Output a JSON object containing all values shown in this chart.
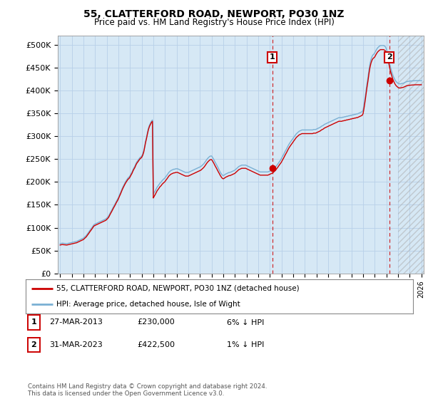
{
  "title": "55, CLATTERFORD ROAD, NEWPORT, PO30 1NZ",
  "subtitle": "Price paid vs. HM Land Registry's House Price Index (HPI)",
  "ylabel_ticks": [
    "£0",
    "£50K",
    "£100K",
    "£150K",
    "£200K",
    "£250K",
    "£300K",
    "£350K",
    "£400K",
    "£450K",
    "£500K"
  ],
  "ytick_vals": [
    0,
    50000,
    100000,
    150000,
    200000,
    250000,
    300000,
    350000,
    400000,
    450000,
    500000
  ],
  "ylim": [
    0,
    520000
  ],
  "xlim_start": 1994.8,
  "xlim_end": 2026.2,
  "hpi_color": "#7ab0d4",
  "price_color": "#cc0000",
  "background_color": "#d6e8f5",
  "grid_color": "#b8d0e8",
  "sale1_x": 2013.2,
  "sale1_y": 230000,
  "sale2_x": 2023.25,
  "sale2_y": 422500,
  "legend_line1": "55, CLATTERFORD ROAD, NEWPORT, PO30 1NZ (detached house)",
  "legend_line2": "HPI: Average price, detached house, Isle of Wight",
  "table_row1": [
    "1",
    "27-MAR-2013",
    "£230,000",
    "6% ↓ HPI"
  ],
  "table_row2": [
    "2",
    "31-MAR-2023",
    "£422,500",
    "1% ↓ HPI"
  ],
  "footer": "Contains HM Land Registry data © Crown copyright and database right 2024.\nThis data is licensed under the Open Government Licence v3.0.",
  "x_months": [
    1995.0,
    1995.08,
    1995.17,
    1995.25,
    1995.33,
    1995.42,
    1995.5,
    1995.58,
    1995.67,
    1995.75,
    1995.83,
    1995.92,
    1996.0,
    1996.08,
    1996.17,
    1996.25,
    1996.33,
    1996.42,
    1996.5,
    1996.58,
    1996.67,
    1996.75,
    1996.83,
    1996.92,
    1997.0,
    1997.08,
    1997.17,
    1997.25,
    1997.33,
    1997.42,
    1997.5,
    1997.58,
    1997.67,
    1997.75,
    1997.83,
    1997.92,
    1998.0,
    1998.08,
    1998.17,
    1998.25,
    1998.33,
    1998.42,
    1998.5,
    1998.58,
    1998.67,
    1998.75,
    1998.83,
    1998.92,
    1999.0,
    1999.08,
    1999.17,
    1999.25,
    1999.33,
    1999.42,
    1999.5,
    1999.58,
    1999.67,
    1999.75,
    1999.83,
    1999.92,
    2000.0,
    2000.08,
    2000.17,
    2000.25,
    2000.33,
    2000.42,
    2000.5,
    2000.58,
    2000.67,
    2000.75,
    2000.83,
    2000.92,
    2001.0,
    2001.08,
    2001.17,
    2001.25,
    2001.33,
    2001.42,
    2001.5,
    2001.58,
    2001.67,
    2001.75,
    2001.83,
    2001.92,
    2002.0,
    2002.08,
    2002.17,
    2002.25,
    2002.33,
    2002.42,
    2002.5,
    2002.58,
    2002.67,
    2002.75,
    2002.83,
    2002.92,
    2003.0,
    2003.08,
    2003.17,
    2003.25,
    2003.33,
    2003.42,
    2003.5,
    2003.58,
    2003.67,
    2003.75,
    2003.83,
    2003.92,
    2004.0,
    2004.08,
    2004.17,
    2004.25,
    2004.33,
    2004.42,
    2004.5,
    2004.58,
    2004.67,
    2004.75,
    2004.83,
    2004.92,
    2005.0,
    2005.08,
    2005.17,
    2005.25,
    2005.33,
    2005.42,
    2005.5,
    2005.58,
    2005.67,
    2005.75,
    2005.83,
    2005.92,
    2006.0,
    2006.08,
    2006.17,
    2006.25,
    2006.33,
    2006.42,
    2006.5,
    2006.58,
    2006.67,
    2006.75,
    2006.83,
    2006.92,
    2007.0,
    2007.08,
    2007.17,
    2007.25,
    2007.33,
    2007.42,
    2007.5,
    2007.58,
    2007.67,
    2007.75,
    2007.83,
    2007.92,
    2008.0,
    2008.08,
    2008.17,
    2008.25,
    2008.33,
    2008.42,
    2008.5,
    2008.58,
    2008.67,
    2008.75,
    2008.83,
    2008.92,
    2009.0,
    2009.08,
    2009.17,
    2009.25,
    2009.33,
    2009.42,
    2009.5,
    2009.58,
    2009.67,
    2009.75,
    2009.83,
    2009.92,
    2010.0,
    2010.08,
    2010.17,
    2010.25,
    2010.33,
    2010.42,
    2010.5,
    2010.58,
    2010.67,
    2010.75,
    2010.83,
    2010.92,
    2011.0,
    2011.08,
    2011.17,
    2011.25,
    2011.33,
    2011.42,
    2011.5,
    2011.58,
    2011.67,
    2011.75,
    2011.83,
    2011.92,
    2012.0,
    2012.08,
    2012.17,
    2012.25,
    2012.33,
    2012.42,
    2012.5,
    2012.58,
    2012.67,
    2012.75,
    2012.83,
    2012.92,
    2013.0,
    2013.08,
    2013.17,
    2013.25,
    2013.33,
    2013.42,
    2013.5,
    2013.58,
    2013.67,
    2013.75,
    2013.83,
    2013.92,
    2014.0,
    2014.08,
    2014.17,
    2014.25,
    2014.33,
    2014.42,
    2014.5,
    2014.58,
    2014.67,
    2014.75,
    2014.83,
    2014.92,
    2015.0,
    2015.08,
    2015.17,
    2015.25,
    2015.33,
    2015.42,
    2015.5,
    2015.58,
    2015.67,
    2015.75,
    2015.83,
    2015.92,
    2016.0,
    2016.08,
    2016.17,
    2016.25,
    2016.33,
    2016.42,
    2016.5,
    2016.58,
    2016.67,
    2016.75,
    2016.83,
    2016.92,
    2017.0,
    2017.08,
    2017.17,
    2017.25,
    2017.33,
    2017.42,
    2017.5,
    2017.58,
    2017.67,
    2017.75,
    2017.83,
    2017.92,
    2018.0,
    2018.08,
    2018.17,
    2018.25,
    2018.33,
    2018.42,
    2018.5,
    2018.58,
    2018.67,
    2018.75,
    2018.83,
    2018.92,
    2019.0,
    2019.08,
    2019.17,
    2019.25,
    2019.33,
    2019.42,
    2019.5,
    2019.58,
    2019.67,
    2019.75,
    2019.83,
    2019.92,
    2020.0,
    2020.08,
    2020.17,
    2020.25,
    2020.33,
    2020.42,
    2020.5,
    2020.58,
    2020.67,
    2020.75,
    2020.83,
    2020.92,
    2021.0,
    2021.08,
    2021.17,
    2021.25,
    2021.33,
    2021.42,
    2021.5,
    2021.58,
    2021.67,
    2021.75,
    2021.83,
    2021.92,
    2022.0,
    2022.08,
    2022.17,
    2022.25,
    2022.33,
    2022.42,
    2022.5,
    2022.58,
    2022.67,
    2022.75,
    2022.83,
    2022.92,
    2023.0,
    2023.08,
    2023.17,
    2023.25,
    2023.33,
    2023.42,
    2023.5,
    2023.58,
    2023.67,
    2023.75,
    2023.83,
    2023.92,
    2024.0,
    2024.08,
    2024.17,
    2024.25,
    2024.33,
    2024.42,
    2024.5,
    2024.58,
    2024.67,
    2024.75,
    2025.0,
    2025.5,
    2026.0
  ],
  "hpi_vals": [
    65000,
    65500,
    66000,
    66000,
    65500,
    65500,
    65000,
    65000,
    65500,
    66000,
    66500,
    67000,
    67500,
    68000,
    68500,
    69000,
    69500,
    70000,
    71000,
    72000,
    73000,
    74000,
    75000,
    76000,
    77000,
    79000,
    81000,
    83000,
    86000,
    89000,
    92000,
    95000,
    98000,
    101000,
    104000,
    107000,
    108000,
    109000,
    110000,
    111000,
    112000,
    113000,
    114000,
    115000,
    116000,
    117000,
    118000,
    119000,
    121000,
    123000,
    126000,
    130000,
    134000,
    138000,
    142000,
    146000,
    150000,
    154000,
    158000,
    162000,
    166000,
    171000,
    176000,
    181000,
    186000,
    191000,
    195000,
    199000,
    203000,
    206000,
    209000,
    211000,
    214000,
    218000,
    222000,
    227000,
    231000,
    235000,
    240000,
    244000,
    247000,
    250000,
    253000,
    255000,
    257000,
    261000,
    268000,
    278000,
    289000,
    299000,
    309000,
    318000,
    325000,
    329000,
    333000,
    336000,
    173000,
    177000,
    181000,
    185000,
    189000,
    192000,
    195000,
    198000,
    200000,
    203000,
    205000,
    207000,
    209000,
    212000,
    215000,
    218000,
    221000,
    223000,
    225000,
    226000,
    227000,
    228000,
    228000,
    229000,
    229000,
    229000,
    228000,
    227000,
    226000,
    225000,
    224000,
    223000,
    222000,
    221000,
    221000,
    221000,
    221000,
    222000,
    223000,
    224000,
    225000,
    226000,
    227000,
    228000,
    229000,
    230000,
    231000,
    232000,
    233000,
    234000,
    236000,
    238000,
    240000,
    243000,
    246000,
    249000,
    252000,
    254000,
    256000,
    257000,
    257000,
    254000,
    250000,
    246000,
    242000,
    238000,
    234000,
    230000,
    225000,
    221000,
    218000,
    215000,
    214000,
    215000,
    217000,
    218000,
    219000,
    220000,
    221000,
    221000,
    222000,
    223000,
    224000,
    225000,
    226000,
    228000,
    230000,
    232000,
    234000,
    235000,
    236000,
    237000,
    237000,
    237000,
    237000,
    237000,
    236000,
    235000,
    234000,
    233000,
    232000,
    231000,
    230000,
    229000,
    228000,
    227000,
    226000,
    225000,
    224000,
    223000,
    222000,
    222000,
    222000,
    222000,
    222000,
    222000,
    222000,
    222000,
    222000,
    223000,
    224000,
    225000,
    226000,
    227000,
    229000,
    231000,
    233000,
    236000,
    239000,
    242000,
    245000,
    248000,
    252000,
    256000,
    260000,
    264000,
    268000,
    272000,
    276000,
    280000,
    284000,
    287000,
    290000,
    293000,
    296000,
    299000,
    302000,
    305000,
    307000,
    309000,
    311000,
    312000,
    313000,
    314000,
    314000,
    314000,
    314000,
    314000,
    314000,
    314000,
    314000,
    314000,
    314000,
    314000,
    314000,
    315000,
    315000,
    315000,
    316000,
    317000,
    318000,
    319000,
    320000,
    322000,
    323000,
    324000,
    326000,
    327000,
    328000,
    329000,
    330000,
    331000,
    332000,
    333000,
    334000,
    335000,
    336000,
    337000,
    338000,
    339000,
    340000,
    341000,
    341000,
    341000,
    341000,
    342000,
    342000,
    343000,
    343000,
    344000,
    344000,
    345000,
    345000,
    346000,
    346000,
    347000,
    347000,
    348000,
    348000,
    349000,
    349000,
    350000,
    351000,
    352000,
    353000,
    354000,
    358000,
    370000,
    385000,
    400000,
    415000,
    430000,
    445000,
    458000,
    468000,
    474000,
    478000,
    480000,
    483000,
    487000,
    491000,
    494000,
    496000,
    498000,
    499000,
    499000,
    499000,
    499000,
    498000,
    496000,
    491000,
    483000,
    473000,
    463000,
    453000,
    445000,
    438000,
    432000,
    427000,
    423000,
    420000,
    418000,
    416000,
    415000,
    415000,
    415000,
    416000,
    416000,
    417000,
    418000,
    419000,
    420000,
    421000,
    422000,
    422000,
    421000,
    419000,
    416000,
    413000,
    410000,
    407000,
    404000,
    401000,
    399000,
    396000,
    392000,
    390000
  ],
  "price_vals": [
    62000,
    62500,
    63000,
    63000,
    62500,
    62500,
    62000,
    62000,
    62500,
    63000,
    63500,
    64000,
    64500,
    65000,
    65500,
    66000,
    66500,
    67000,
    68000,
    69000,
    70000,
    71000,
    72000,
    73000,
    74000,
    76000,
    78000,
    80000,
    83000,
    86000,
    89000,
    92000,
    95000,
    98000,
    101000,
    104000,
    105000,
    106000,
    107000,
    108000,
    109000,
    110000,
    111000,
    112000,
    113000,
    114000,
    115000,
    116000,
    118000,
    120000,
    123000,
    127000,
    131000,
    135000,
    139000,
    143000,
    147000,
    151000,
    155000,
    159000,
    163000,
    168000,
    173000,
    178000,
    183000,
    188000,
    192000,
    196000,
    200000,
    203000,
    206000,
    208000,
    211000,
    215000,
    219000,
    224000,
    228000,
    232000,
    237000,
    241000,
    244000,
    247000,
    250000,
    252000,
    254000,
    258000,
    265000,
    275000,
    286000,
    296000,
    306000,
    315000,
    322000,
    326000,
    330000,
    333000,
    165000,
    169000,
    173000,
    177000,
    181000,
    184000,
    187000,
    190000,
    192000,
    195000,
    197000,
    199000,
    201000,
    204000,
    207000,
    210000,
    213000,
    215000,
    217000,
    218000,
    219000,
    220000,
    220000,
    221000,
    221000,
    221000,
    220000,
    219000,
    218000,
    217000,
    216000,
    215000,
    214000,
    213000,
    213000,
    213000,
    213000,
    214000,
    215000,
    216000,
    217000,
    218000,
    219000,
    220000,
    221000,
    222000,
    223000,
    224000,
    225000,
    226000,
    228000,
    230000,
    232000,
    235000,
    238000,
    241000,
    244000,
    246000,
    248000,
    249000,
    249000,
    246000,
    242000,
    238000,
    234000,
    230000,
    226000,
    222000,
    218000,
    214000,
    211000,
    208000,
    207000,
    208000,
    210000,
    211000,
    212000,
    213000,
    214000,
    214000,
    215000,
    216000,
    217000,
    218000,
    219000,
    221000,
    223000,
    225000,
    227000,
    228000,
    229000,
    230000,
    230000,
    230000,
    230000,
    230000,
    229000,
    228000,
    227000,
    226000,
    225000,
    224000,
    223000,
    222000,
    221000,
    220000,
    219000,
    218000,
    217000,
    216000,
    215000,
    215000,
    215000,
    215000,
    215000,
    215000,
    215000,
    215000,
    215000,
    216000,
    217000,
    218000,
    219000,
    220000,
    222000,
    224000,
    226000,
    229000,
    232000,
    235000,
    238000,
    241000,
    244000,
    248000,
    252000,
    256000,
    260000,
    264000,
    268000,
    272000,
    276000,
    279000,
    282000,
    285000,
    288000,
    291000,
    294000,
    297000,
    299000,
    301000,
    303000,
    304000,
    305000,
    306000,
    306000,
    306000,
    306000,
    306000,
    306000,
    306000,
    306000,
    306000,
    306000,
    306000,
    306000,
    307000,
    307000,
    307000,
    308000,
    309000,
    310000,
    311000,
    312000,
    314000,
    315000,
    316000,
    318000,
    319000,
    320000,
    321000,
    322000,
    323000,
    324000,
    325000,
    326000,
    327000,
    328000,
    329000,
    330000,
    331000,
    332000,
    333000,
    333000,
    333000,
    333000,
    334000,
    334000,
    335000,
    335000,
    336000,
    336000,
    337000,
    337000,
    338000,
    338000,
    339000,
    339000,
    340000,
    340000,
    341000,
    341000,
    342000,
    343000,
    344000,
    345000,
    346000,
    350000,
    362000,
    377000,
    392000,
    407000,
    422000,
    437000,
    450000,
    460000,
    466000,
    470000,
    472000,
    474000,
    478000,
    482000,
    485000,
    487000,
    489000,
    490000,
    490000,
    490000,
    490000,
    489000,
    487000,
    482000,
    474000,
    464000,
    454000,
    444000,
    436000,
    429000,
    423000,
    418000,
    414000,
    411000,
    409000,
    407000,
    406000,
    406000,
    406000,
    407000,
    407000,
    408000,
    409000,
    410000,
    411000,
    412000,
    413000,
    413000,
    412000,
    410000,
    407000,
    404000,
    401000,
    398000,
    395000,
    392000,
    390000,
    387000,
    383000,
    381000
  ]
}
